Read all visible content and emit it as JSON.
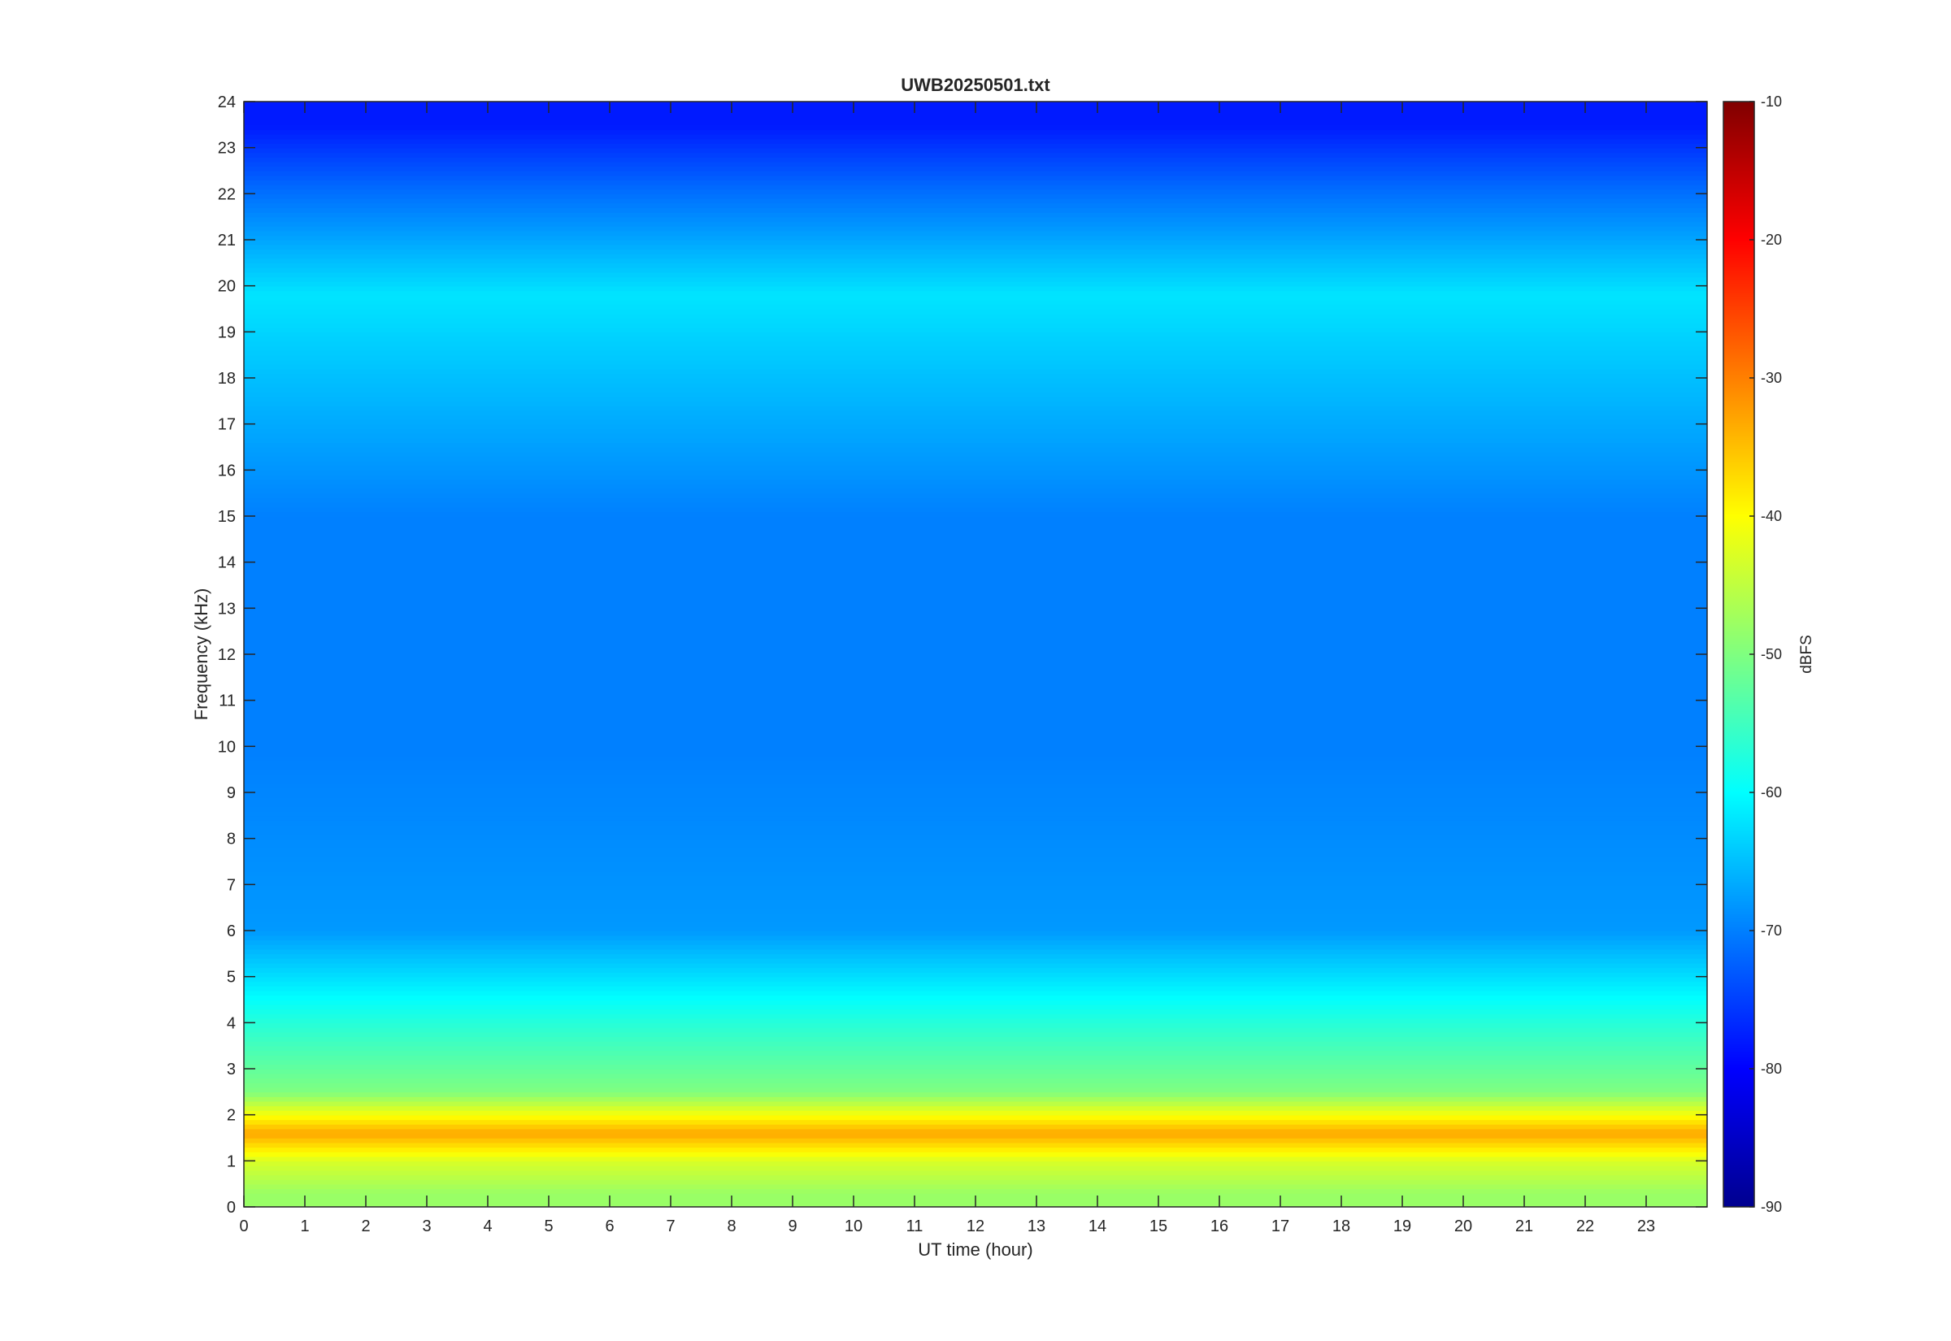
{
  "chart_data": {
    "type": "heatmap",
    "title": "UWB20250501.txt",
    "xlabel": "UT time (hour)",
    "ylabel": "Frequency (kHz)",
    "xlim": [
      0,
      24
    ],
    "ylim": [
      0,
      24
    ],
    "x_ticks": [
      "0",
      "1",
      "2",
      "3",
      "4",
      "5",
      "6",
      "7",
      "8",
      "9",
      "10",
      "11",
      "12",
      "13",
      "14",
      "15",
      "16",
      "17",
      "18",
      "19",
      "20",
      "21",
      "22",
      "23"
    ],
    "y_ticks": [
      "0",
      "1",
      "2",
      "3",
      "4",
      "5",
      "6",
      "7",
      "8",
      "9",
      "10",
      "11",
      "12",
      "13",
      "14",
      "15",
      "16",
      "17",
      "18",
      "19",
      "20",
      "21",
      "22",
      "23",
      "24"
    ],
    "colorbar": {
      "label": "dBFS",
      "range": [
        -90,
        -10
      ],
      "ticks": [
        "-10",
        "-20",
        "-30",
        "-40",
        "-50",
        "-60",
        "-70",
        "-80",
        "-90"
      ],
      "colormap": "jet"
    },
    "grid": false,
    "approx_level_profile_dBFS": [
      {
        "freq_khz": 0.3,
        "level": -48
      },
      {
        "freq_khz": 1.0,
        "level": -43
      },
      {
        "freq_khz": 1.6,
        "level": -33
      },
      {
        "freq_khz": 2.5,
        "level": -50
      },
      {
        "freq_khz": 4.0,
        "level": -57
      },
      {
        "freq_khz": 6.0,
        "level": -68
      },
      {
        "freq_khz": 10.0,
        "level": -70
      },
      {
        "freq_khz": 15.0,
        "level": -70
      },
      {
        "freq_khz": 19.8,
        "level": -62
      },
      {
        "freq_khz": 22.2,
        "level": -72
      },
      {
        "freq_khz": 23.5,
        "level": -78
      }
    ]
  }
}
